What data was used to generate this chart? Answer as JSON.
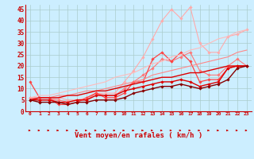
{
  "xlabel": "Vent moyen/en rafales ( km/h )",
  "bg_color": "#cceeff",
  "grid_color": "#aacccc",
  "x": [
    0,
    1,
    2,
    3,
    4,
    5,
    6,
    7,
    8,
    9,
    10,
    11,
    12,
    13,
    14,
    15,
    16,
    17,
    18,
    19,
    20,
    21,
    22,
    23
  ],
  "ylim": [
    0,
    47
  ],
  "yticks": [
    0,
    5,
    10,
    15,
    20,
    25,
    30,
    35,
    40,
    45
  ],
  "series": [
    {
      "color": "#ffaaaa",
      "linewidth": 0.8,
      "marker": "D",
      "markersize": 1.8,
      "values": [
        6,
        5,
        5,
        6,
        5,
        5,
        6,
        8,
        8,
        8,
        13,
        18,
        24,
        32,
        40,
        45,
        41,
        46,
        30,
        26,
        26,
        33,
        34,
        36
      ]
    },
    {
      "color": "#ff7777",
      "linewidth": 0.8,
      "marker": "D",
      "markersize": 1.8,
      "values": [
        6,
        5,
        5,
        5,
        4,
        5,
        5,
        8,
        7,
        7,
        10,
        13,
        16,
        19,
        23,
        22,
        24,
        26,
        18,
        16,
        16,
        20,
        23,
        20
      ]
    },
    {
      "color": "#ff4444",
      "linewidth": 0.9,
      "marker": "D",
      "markersize": 1.8,
      "values": [
        13,
        6,
        6,
        3,
        3,
        4,
        6,
        8,
        6,
        6,
        8,
        13,
        13,
        23,
        26,
        22,
        26,
        22,
        13,
        14,
        14,
        19,
        20,
        20
      ]
    },
    {
      "color": "#ff8888",
      "linewidth": 0.8,
      "marker": null,
      "markersize": 0,
      "values": [
        6,
        6,
        6,
        7,
        7,
        8,
        9,
        9,
        10,
        11,
        12,
        13,
        14,
        16,
        17,
        18,
        19,
        20,
        21,
        22,
        23,
        24,
        26,
        27
      ]
    },
    {
      "color": "#ffbbbb",
      "linewidth": 0.8,
      "marker": null,
      "markersize": 0,
      "values": [
        6,
        7,
        7,
        8,
        9,
        10,
        11,
        12,
        13,
        15,
        16,
        17,
        19,
        21,
        22,
        24,
        25,
        27,
        28,
        30,
        32,
        33,
        35,
        36
      ]
    },
    {
      "color": "#dd0000",
      "linewidth": 1.0,
      "marker": "D",
      "markersize": 1.8,
      "values": [
        5,
        5,
        5,
        4,
        4,
        5,
        5,
        7,
        7,
        7,
        9,
        10,
        11,
        12,
        13,
        13,
        14,
        13,
        11,
        12,
        13,
        19,
        20,
        20
      ]
    },
    {
      "color": "#dd0000",
      "linewidth": 1.0,
      "marker": null,
      "markersize": 0,
      "values": [
        5,
        6,
        6,
        6,
        7,
        7,
        8,
        9,
        9,
        10,
        11,
        12,
        13,
        14,
        15,
        15,
        16,
        17,
        17,
        18,
        19,
        20,
        20,
        20
      ]
    },
    {
      "color": "#880000",
      "linewidth": 1.0,
      "marker": "D",
      "markersize": 1.8,
      "values": [
        5,
        4,
        4,
        4,
        3,
        4,
        4,
        5,
        5,
        5,
        6,
        8,
        9,
        10,
        11,
        11,
        12,
        11,
        10,
        11,
        12,
        14,
        19,
        20
      ]
    }
  ]
}
